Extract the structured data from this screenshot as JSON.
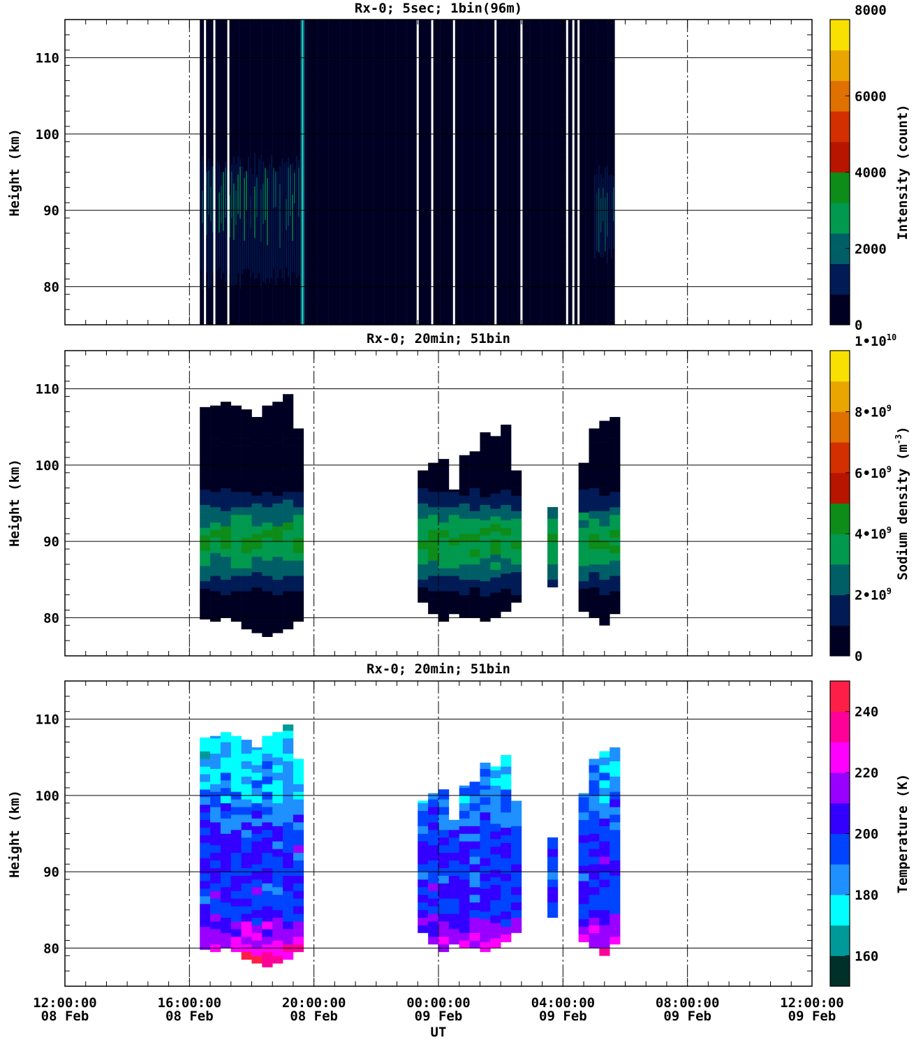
{
  "xaxis": {
    "label": "UT",
    "range": [
      "2024-02-08T12:00",
      "2024-02-09T12:00"
    ],
    "ticks": [
      {
        "t": "2024-02-08T12:00",
        "time": "12:00:00",
        "date": "08 Feb"
      },
      {
        "t": "2024-02-08T16:00",
        "time": "16:00:00",
        "date": "08 Feb"
      },
      {
        "t": "2024-02-08T20:00",
        "time": "20:00:00",
        "date": "08 Feb"
      },
      {
        "t": "2024-02-09T00:00",
        "time": "00:00:00",
        "date": "09 Feb"
      },
      {
        "t": "2024-02-09T04:00",
        "time": "04:00:00",
        "date": "09 Feb"
      },
      {
        "t": "2024-02-09T08:00",
        "time": "08:00:00",
        "date": "09 Feb"
      },
      {
        "t": "2024-02-09T12:00",
        "time": "12:00:00",
        "date": "09 Feb"
      }
    ]
  },
  "chart_data": [
    {
      "type": "heatmap",
      "title": "Rx-0;  5sec; 1bin(96m)",
      "ylabel": "Height (km)",
      "ylim": [
        75,
        115
      ],
      "yticks": [
        80,
        90,
        100,
        110
      ],
      "grid": true,
      "colorbar": {
        "label": "Intensity (count)",
        "range": [
          0,
          8000
        ],
        "ticks": [
          {
            "v": 0,
            "label": "0"
          },
          {
            "v": 2000,
            "label": "2000"
          },
          {
            "v": 4000,
            "label": "4000"
          },
          {
            "v": 6000,
            "label": "6000"
          },
          {
            "v": 8000,
            "label": "8000"
          }
        ],
        "colors": [
          "#000022",
          "#001b55",
          "#005f66",
          "#00994d",
          "#0e8c1a",
          "#b81500",
          "#d42f00",
          "#e07000",
          "#eba500",
          "#f8e000"
        ]
      },
      "observation_window": [
        "2024-02-08T16:20",
        "2024-02-09T05:40"
      ],
      "data_gaps": [
        "2024-02-08T16:30",
        "2024-02-08T16:48",
        "2024-02-08T17:15",
        "2024-02-08T23:20",
        "2024-02-08T23:48",
        "2024-02-09T00:30",
        "2024-02-09T01:50",
        "2024-02-09T02:40",
        "2024-02-09T04:08",
        "2024-02-09T04:20",
        "2024-02-09T04:30"
      ],
      "spikes": [
        "2024-02-08T19:38"
      ],
      "layers": [
        {
          "start": "2024-02-08T16:20",
          "end": "2024-02-08T19:30",
          "bottom": 81,
          "top": 96,
          "peak": 91,
          "intensity": 3000
        },
        {
          "start": "2024-02-09T05:00",
          "end": "2024-02-09T05:40",
          "bottom": 84,
          "top": 95,
          "peak": 90,
          "intensity": 1500
        }
      ]
    },
    {
      "type": "heatmap",
      "title": "Rx-0; 20min; 51bin",
      "ylabel": "Height (km)",
      "ylim": [
        75,
        115
      ],
      "yticks": [
        80,
        90,
        100,
        110
      ],
      "grid": true,
      "colorbar": {
        "label": "Sodium density (m-3)",
        "range": [
          0,
          10000000000
        ],
        "ticks": [
          {
            "v": 0,
            "label": "0"
          },
          {
            "v": 2000000000,
            "label": "2•10^9"
          },
          {
            "v": 4000000000,
            "label": "4•10^9"
          },
          {
            "v": 6000000000,
            "label": "6•10^9"
          },
          {
            "v": 8000000000,
            "label": "8•10^9"
          },
          {
            "v": 10000000000,
            "label": "1•10^10"
          }
        ],
        "colors": [
          "#000022",
          "#001b55",
          "#005f66",
          "#00994d",
          "#0e8c1a",
          "#b81500",
          "#d42f00",
          "#e07000",
          "#eba500",
          "#f8e000"
        ]
      },
      "segments": [
        {
          "start": "2024-02-08T16:20",
          "columns": [
            [
              79.8,
              107.6
            ],
            [
              79.5,
              107.8
            ],
            [
              80.0,
              108.3
            ],
            [
              79.5,
              107.8
            ],
            [
              78.5,
              107.3
            ],
            [
              78.0,
              106.3
            ],
            [
              77.5,
              107.8
            ],
            [
              78.0,
              108.3
            ],
            [
              78.5,
              109.3
            ],
            [
              79.5,
              104.8
            ]
          ]
        },
        {
          "start": "2024-02-08T23:20",
          "columns": [
            [
              82.0,
              99.3
            ],
            [
              80.5,
              100.3
            ],
            [
              79.5,
              100.8
            ],
            [
              80.5,
              96.8
            ],
            [
              80.0,
              101.3
            ],
            [
              80.0,
              101.8
            ],
            [
              79.5,
              104.3
            ],
            [
              80.0,
              102.3
            ]
          ]
        },
        {
          "start": "2024-02-09T01:20",
          "columns": [
            [
              80.8,
              101.3
            ],
            [
              80.3,
              103.8
            ],
            [
              80.8,
              105.3
            ],
            [
              82.0,
              99.3
            ]
          ]
        },
        {
          "start": "2024-02-09T03:30",
          "columns": [
            [
              84.0,
              94.5
            ]
          ]
        },
        {
          "start": "2024-02-09T04:30",
          "columns": [
            [
              80.8,
              100.3
            ],
            [
              80.0,
              104.8
            ],
            [
              79.0,
              105.8
            ],
            [
              80.5,
              106.3
            ]
          ]
        }
      ],
      "layer_peak_km": 90,
      "layer_halfwidth_km": 5.5,
      "peak_density": 4000000000
    },
    {
      "type": "heatmap",
      "title": "Rx-0; 20min; 51bin",
      "ylabel": "Height (km)",
      "ylim": [
        75,
        115
      ],
      "yticks": [
        80,
        90,
        100,
        110
      ],
      "grid": true,
      "colorbar": {
        "label": "Temperature (K)",
        "range": [
          150,
          250
        ],
        "ticks": [
          {
            "v": 160,
            "label": "160"
          },
          {
            "v": 180,
            "label": "180"
          },
          {
            "v": 200,
            "label": "200"
          },
          {
            "v": 220,
            "label": "220"
          },
          {
            "v": 240,
            "label": "240"
          }
        ],
        "colors": [
          "#00302a",
          "#009999",
          "#00ffff",
          "#1e90ff",
          "#0044ff",
          "#3300ff",
          "#9900ff",
          "#ff00ff",
          "#ff0099",
          "#ff1e46"
        ]
      },
      "segments": "same as density panel",
      "temperature_profile": {
        "warm_bottom_K": 240,
        "mid_K": 200,
        "top_K": 175
      }
    }
  ]
}
